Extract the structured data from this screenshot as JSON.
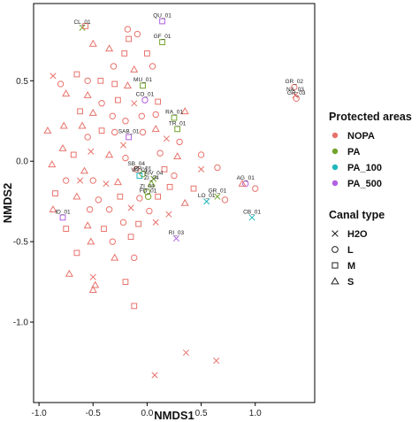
{
  "colors": {
    "NOPA": "#e8736c",
    "PA": "#72a32b",
    "PA_100": "#1fb7bd",
    "PA_500": "#b15fe0",
    "axis": "#000000",
    "text": "#111111"
  },
  "chart_data": {
    "type": "scatter",
    "xlabel": "NMDS1",
    "ylabel": "NMDS2",
    "xlim": [
      -1.05,
      1.55
    ],
    "ylim": [
      -1.5,
      0.98
    ],
    "xticks": [
      -1.0,
      -0.5,
      0.0,
      0.5,
      1.0
    ],
    "xtick_labels": [
      "-1.0",
      "-0.5",
      "0.0",
      "0.5",
      "1.0"
    ],
    "yticks": [
      -1.0,
      -0.5,
      0.0,
      0.5
    ],
    "ytick_labels": [
      "-1.0",
      "-0.5",
      "0.0",
      "0.5"
    ],
    "grid": false,
    "legend_placement": "right",
    "legends": [
      {
        "title": "Protected areas",
        "kind": "color",
        "entries": [
          {
            "label": "NOPA",
            "key": "NOPA"
          },
          {
            "label": "PA",
            "key": "PA"
          },
          {
            "label": "PA_100",
            "key": "PA_100"
          },
          {
            "label": "PA_500",
            "key": "PA_500"
          }
        ]
      },
      {
        "title": "Canal type",
        "kind": "shape",
        "entries": [
          {
            "label": "H2O",
            "key": "H2O"
          },
          {
            "label": "L",
            "key": "L"
          },
          {
            "label": "M",
            "key": "M"
          },
          {
            "label": "S",
            "key": "S"
          }
        ]
      }
    ],
    "points": [
      {
        "x": -0.6,
        "y": 0.83,
        "area": "PA",
        "canal": "H2O",
        "label": "CL_01"
      },
      {
        "x": 0.14,
        "y": 0.87,
        "area": "PA_500",
        "canal": "M",
        "label": "QU_01"
      },
      {
        "x": 0.14,
        "y": 0.74,
        "area": "PA",
        "canal": "M",
        "label": "GF_01"
      },
      {
        "x": -0.04,
        "y": 0.47,
        "area": "PA",
        "canal": "M",
        "label": "MU_01"
      },
      {
        "x": -0.02,
        "y": 0.38,
        "area": "PA_500",
        "canal": "L",
        "label": "CO_01"
      },
      {
        "x": 0.25,
        "y": 0.27,
        "area": "PA",
        "canal": "M",
        "label": "RA_01"
      },
      {
        "x": 0.28,
        "y": 0.2,
        "area": "PA",
        "canal": "M",
        "label": "TR_01"
      },
      {
        "x": -0.17,
        "y": 0.15,
        "area": "PA_500",
        "canal": "M",
        "label": "SAB_01"
      },
      {
        "x": 1.36,
        "y": 0.46,
        "area": "NOPA",
        "canal": "L",
        "label": "GR_02"
      },
      {
        "x": 1.37,
        "y": 0.41,
        "area": "NOPA",
        "canal": "H2O",
        "label": "NA_03"
      },
      {
        "x": 1.38,
        "y": 0.39,
        "area": "NOPA",
        "canal": "L",
        "label": "GR_03"
      },
      {
        "x": -0.1,
        "y": -0.05,
        "area": "NOPA",
        "canal": "L",
        "label": "SB_04"
      },
      {
        "x": -0.04,
        "y": -0.08,
        "area": "PA",
        "canal": "L",
        "label": "PR_01"
      },
      {
        "x": -0.07,
        "y": -0.09,
        "area": "PA_100",
        "canal": "M",
        "label": "VA_01"
      },
      {
        "x": 0.06,
        "y": -0.11,
        "area": "PA",
        "canal": "H2O",
        "label": "AIV_04"
      },
      {
        "x": 0.04,
        "y": -0.14,
        "area": "PA",
        "canal": "S",
        "label": "ZI_04"
      },
      {
        "x": 0.0,
        "y": -0.19,
        "area": "PA",
        "canal": "L",
        "label": "ZI_03"
      },
      {
        "x": 0.01,
        "y": -0.22,
        "area": "PA",
        "canal": "L",
        "label": "FD_01"
      },
      {
        "x": 0.65,
        "y": -0.22,
        "area": "PA",
        "canal": "H2O",
        "label": "GR_01"
      },
      {
        "x": 0.55,
        "y": -0.25,
        "area": "PA_100",
        "canal": "H2O",
        "label": "LO_01"
      },
      {
        "x": 0.91,
        "y": -0.14,
        "area": "PA_500",
        "canal": "L",
        "label": "AG_01"
      },
      {
        "x": 0.97,
        "y": -0.35,
        "area": "PA_100",
        "canal": "H2O",
        "label": "CB_01"
      },
      {
        "x": -0.78,
        "y": -0.35,
        "area": "PA_500",
        "canal": "M",
        "label": "ID_01"
      },
      {
        "x": 0.27,
        "y": -0.48,
        "area": "PA_500",
        "canal": "H2O",
        "label": "RI_03"
      },
      {
        "x": -0.57,
        "y": 0.84,
        "area": "NOPA",
        "canal": "M"
      },
      {
        "x": -0.18,
        "y": 0.82,
        "area": "NOPA",
        "canal": "L"
      },
      {
        "x": -0.17,
        "y": 0.76,
        "area": "NOPA",
        "canal": "M"
      },
      {
        "x": -0.09,
        "y": 0.79,
        "area": "NOPA",
        "canal": "L"
      },
      {
        "x": -0.5,
        "y": 0.73,
        "area": "NOPA",
        "canal": "S"
      },
      {
        "x": -0.35,
        "y": 0.7,
        "area": "NOPA",
        "canal": "S"
      },
      {
        "x": -0.21,
        "y": 0.67,
        "area": "NOPA",
        "canal": "M"
      },
      {
        "x": 0.0,
        "y": 0.67,
        "area": "NOPA",
        "canal": "M"
      },
      {
        "x": -0.31,
        "y": 0.59,
        "area": "NOPA",
        "canal": "L"
      },
      {
        "x": -0.12,
        "y": 0.57,
        "area": "NOPA",
        "canal": "S"
      },
      {
        "x": 0.05,
        "y": 0.59,
        "area": "NOPA",
        "canal": "L"
      },
      {
        "x": -0.87,
        "y": 0.53,
        "area": "NOPA",
        "canal": "H2O"
      },
      {
        "x": -0.8,
        "y": 0.48,
        "area": "NOPA",
        "canal": "L"
      },
      {
        "x": -0.65,
        "y": 0.54,
        "area": "NOPA",
        "canal": "M"
      },
      {
        "x": -0.55,
        "y": 0.5,
        "area": "NOPA",
        "canal": "L"
      },
      {
        "x": -0.43,
        "y": 0.5,
        "area": "NOPA",
        "canal": "M"
      },
      {
        "x": -0.3,
        "y": 0.48,
        "area": "NOPA",
        "canal": "M"
      },
      {
        "x": -0.18,
        "y": 0.47,
        "area": "NOPA",
        "canal": "S"
      },
      {
        "x": -0.75,
        "y": 0.42,
        "area": "NOPA",
        "canal": "S"
      },
      {
        "x": -0.55,
        "y": 0.41,
        "area": "NOPA",
        "canal": "S"
      },
      {
        "x": -0.42,
        "y": 0.36,
        "area": "NOPA",
        "canal": "L"
      },
      {
        "x": -0.27,
        "y": 0.38,
        "area": "NOPA",
        "canal": "M"
      },
      {
        "x": -0.12,
        "y": 0.36,
        "area": "NOPA",
        "canal": "H2O"
      },
      {
        "x": 0.1,
        "y": 0.37,
        "area": "NOPA",
        "canal": "M"
      },
      {
        "x": -0.62,
        "y": 0.31,
        "area": "NOPA",
        "canal": "M"
      },
      {
        "x": -0.5,
        "y": 0.3,
        "area": "NOPA",
        "canal": "S"
      },
      {
        "x": -0.32,
        "y": 0.28,
        "area": "NOPA",
        "canal": "L"
      },
      {
        "x": -0.2,
        "y": 0.25,
        "area": "NOPA",
        "canal": "L"
      },
      {
        "x": -0.05,
        "y": 0.28,
        "area": "NOPA",
        "canal": "L"
      },
      {
        "x": 0.08,
        "y": 0.29,
        "area": "NOPA",
        "canal": "L"
      },
      {
        "x": 0.35,
        "y": 0.31,
        "area": "NOPA",
        "canal": "S"
      },
      {
        "x": -0.77,
        "y": 0.22,
        "area": "NOPA",
        "canal": "S"
      },
      {
        "x": -0.6,
        "y": 0.22,
        "area": "NOPA",
        "canal": "S"
      },
      {
        "x": -0.42,
        "y": 0.19,
        "area": "NOPA",
        "canal": "M"
      },
      {
        "x": -0.3,
        "y": 0.18,
        "area": "NOPA",
        "canal": "L"
      },
      {
        "x": -0.04,
        "y": 0.18,
        "area": "NOPA",
        "canal": "L"
      },
      {
        "x": 0.08,
        "y": 0.2,
        "area": "NOPA",
        "canal": "S"
      },
      {
        "x": -0.92,
        "y": 0.19,
        "area": "NOPA",
        "canal": "S"
      },
      {
        "x": -0.55,
        "y": 0.15,
        "area": "NOPA",
        "canal": "L"
      },
      {
        "x": -0.22,
        "y": 0.1,
        "area": "NOPA",
        "canal": "H2O"
      },
      {
        "x": 0.18,
        "y": 0.14,
        "area": "NOPA",
        "canal": "H2O"
      },
      {
        "x": 0.3,
        "y": 0.12,
        "area": "NOPA",
        "canal": "L"
      },
      {
        "x": -0.78,
        "y": 0.08,
        "area": "NOPA",
        "canal": "S"
      },
      {
        "x": -0.68,
        "y": 0.04,
        "area": "NOPA",
        "canal": "M"
      },
      {
        "x": -0.52,
        "y": 0.06,
        "area": "NOPA",
        "canal": "H2O"
      },
      {
        "x": -0.35,
        "y": 0.04,
        "area": "NOPA",
        "canal": "S"
      },
      {
        "x": -0.2,
        "y": 0.02,
        "area": "NOPA",
        "canal": "L"
      },
      {
        "x": 0.12,
        "y": 0.05,
        "area": "NOPA",
        "canal": "L"
      },
      {
        "x": 0.28,
        "y": 0.03,
        "area": "NOPA",
        "canal": "S"
      },
      {
        "x": 0.5,
        "y": 0.04,
        "area": "NOPA",
        "canal": "L"
      },
      {
        "x": -0.88,
        "y": -0.02,
        "area": "NOPA",
        "canal": "S"
      },
      {
        "x": -0.58,
        "y": -0.06,
        "area": "NOPA",
        "canal": "S"
      },
      {
        "x": 0.16,
        "y": -0.05,
        "area": "NOPA",
        "canal": "M"
      },
      {
        "x": 0.5,
        "y": -0.05,
        "area": "NOPA",
        "canal": "H2O"
      },
      {
        "x": 0.65,
        "y": -0.04,
        "area": "NOPA",
        "canal": "L"
      },
      {
        "x": 0.25,
        "y": -0.09,
        "area": "NOPA",
        "canal": "L"
      },
      {
        "x": -0.75,
        "y": -0.12,
        "area": "NOPA",
        "canal": "L"
      },
      {
        "x": -0.62,
        "y": -0.12,
        "area": "NOPA",
        "canal": "H2O"
      },
      {
        "x": -0.5,
        "y": -0.12,
        "area": "NOPA",
        "canal": "L"
      },
      {
        "x": -0.38,
        "y": -0.14,
        "area": "NOPA",
        "canal": "H2O"
      },
      {
        "x": -0.27,
        "y": -0.13,
        "area": "NOPA",
        "canal": "S"
      },
      {
        "x": 0.21,
        "y": -0.16,
        "area": "NOPA",
        "canal": "M"
      },
      {
        "x": 0.43,
        "y": -0.17,
        "area": "NOPA",
        "canal": "M"
      },
      {
        "x": 0.88,
        "y": -0.14,
        "area": "NOPA",
        "canal": "S"
      },
      {
        "x": 1.0,
        "y": -0.17,
        "area": "NOPA",
        "canal": "L"
      },
      {
        "x": -0.85,
        "y": -0.2,
        "area": "NOPA",
        "canal": "M"
      },
      {
        "x": -0.65,
        "y": -0.22,
        "area": "NOPA",
        "canal": "S"
      },
      {
        "x": -0.45,
        "y": -0.24,
        "area": "NOPA",
        "canal": "L"
      },
      {
        "x": -0.25,
        "y": -0.22,
        "area": "NOPA",
        "canal": "M"
      },
      {
        "x": -0.07,
        "y": -0.23,
        "area": "NOPA",
        "canal": "L"
      },
      {
        "x": 0.1,
        "y": -0.22,
        "area": "NOPA",
        "canal": "M"
      },
      {
        "x": 0.35,
        "y": -0.26,
        "area": "NOPA",
        "canal": "S"
      },
      {
        "x": 0.72,
        "y": -0.24,
        "area": "NOPA",
        "canal": "L"
      },
      {
        "x": -0.87,
        "y": -0.3,
        "area": "NOPA",
        "canal": "S"
      },
      {
        "x": -0.53,
        "y": -0.3,
        "area": "NOPA",
        "canal": "L"
      },
      {
        "x": -0.35,
        "y": -0.3,
        "area": "NOPA",
        "canal": "L"
      },
      {
        "x": -0.15,
        "y": -0.29,
        "area": "NOPA",
        "canal": "H2O"
      },
      {
        "x": 0.02,
        "y": -0.31,
        "area": "NOPA",
        "canal": "L"
      },
      {
        "x": 0.2,
        "y": -0.33,
        "area": "NOPA",
        "canal": "H2O"
      },
      {
        "x": -0.75,
        "y": -0.42,
        "area": "NOPA",
        "canal": "M"
      },
      {
        "x": -0.55,
        "y": -0.4,
        "area": "NOPA",
        "canal": "S"
      },
      {
        "x": -0.4,
        "y": -0.42,
        "area": "NOPA",
        "canal": "M"
      },
      {
        "x": -0.22,
        "y": -0.38,
        "area": "NOPA",
        "canal": "L"
      },
      {
        "x": -0.08,
        "y": -0.39,
        "area": "NOPA",
        "canal": "M"
      },
      {
        "x": 0.08,
        "y": -0.38,
        "area": "NOPA",
        "canal": "H2O"
      },
      {
        "x": -0.52,
        "y": -0.5,
        "area": "NOPA",
        "canal": "S"
      },
      {
        "x": -0.32,
        "y": -0.5,
        "area": "NOPA",
        "canal": "L"
      },
      {
        "x": -0.15,
        "y": -0.47,
        "area": "NOPA",
        "canal": "M"
      },
      {
        "x": -0.65,
        "y": -0.57,
        "area": "NOPA",
        "canal": "M"
      },
      {
        "x": -0.3,
        "y": -0.6,
        "area": "NOPA",
        "canal": "S"
      },
      {
        "x": -0.12,
        "y": -0.6,
        "area": "NOPA",
        "canal": "L"
      },
      {
        "x": -0.72,
        "y": -0.7,
        "area": "NOPA",
        "canal": "S"
      },
      {
        "x": -0.5,
        "y": -0.72,
        "area": "NOPA",
        "canal": "H2O"
      },
      {
        "x": -0.2,
        "y": -0.75,
        "area": "NOPA",
        "canal": "M"
      },
      {
        "x": -0.48,
        "y": -0.77,
        "area": "NOPA",
        "canal": "S"
      },
      {
        "x": -0.5,
        "y": -0.8,
        "area": "NOPA",
        "canal": "S"
      },
      {
        "x": -0.12,
        "y": -0.9,
        "area": "NOPA",
        "canal": "M"
      },
      {
        "x": 0.36,
        "y": -1.19,
        "area": "NOPA",
        "canal": "H2O"
      },
      {
        "x": 0.64,
        "y": -1.24,
        "area": "NOPA",
        "canal": "H2O"
      },
      {
        "x": 0.07,
        "y": -1.33,
        "area": "NOPA",
        "canal": "H2O"
      }
    ]
  }
}
